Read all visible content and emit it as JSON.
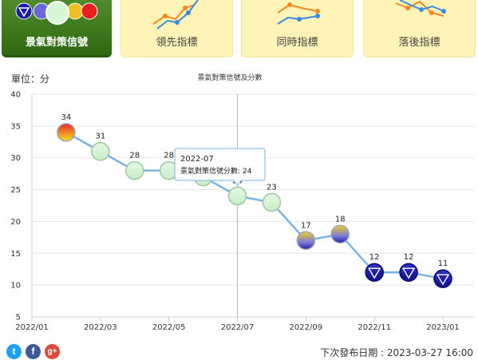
{
  "tabs": [
    {
      "label": "景氣對策信號",
      "icon": "signal-lights-icon",
      "active": true
    },
    {
      "label": "領先指標",
      "icon": "line-chart-icon",
      "active": false
    },
    {
      "label": "同時指標",
      "icon": "line-chart-icon",
      "active": false
    },
    {
      "label": "落後指標",
      "icon": "line-chart-icon",
      "active": false
    }
  ],
  "unit_label": "單位：分",
  "tooltip": {
    "title": "2022-07",
    "text": "景氣對策信號分數: 24"
  },
  "footer": {
    "release_date": "下次發布日期 : 2023-03-27 16:00"
  },
  "social": [
    {
      "name": "twitter-icon",
      "glyph": "t",
      "color": "#1da1f2"
    },
    {
      "name": "facebook-icon",
      "glyph": "f",
      "color": "#3b5998"
    },
    {
      "name": "google-plus-icon",
      "glyph": "g+",
      "color": "#dd4b39"
    }
  ],
  "chart_data": {
    "type": "line",
    "title": "景氣對策信號及分數",
    "xlabel": "",
    "ylabel": "",
    "ylim": [
      5,
      40
    ],
    "yticks": [
      5,
      10,
      15,
      20,
      25,
      30,
      35,
      40
    ],
    "xticks": [
      "2022/01",
      "2022/03",
      "2022/05",
      "2022/07",
      "2022/09",
      "2022/11",
      "2023/01"
    ],
    "x": [
      "2022-02",
      "2022-03",
      "2022-04",
      "2022-05",
      "2022-06",
      "2022-07",
      "2022-08",
      "2022-09",
      "2022-10",
      "2022-11",
      "2022-12",
      "2023-01"
    ],
    "values": [
      34,
      31,
      28,
      28,
      27,
      24,
      23,
      17,
      18,
      12,
      12,
      11
    ],
    "signals": [
      "yellow-red",
      "green",
      "green",
      "green",
      "green",
      "green",
      "green",
      "yellow-blue",
      "yellow-blue",
      "blue",
      "blue",
      "blue"
    ],
    "grid": true,
    "line_color": "#7ab3e8"
  }
}
